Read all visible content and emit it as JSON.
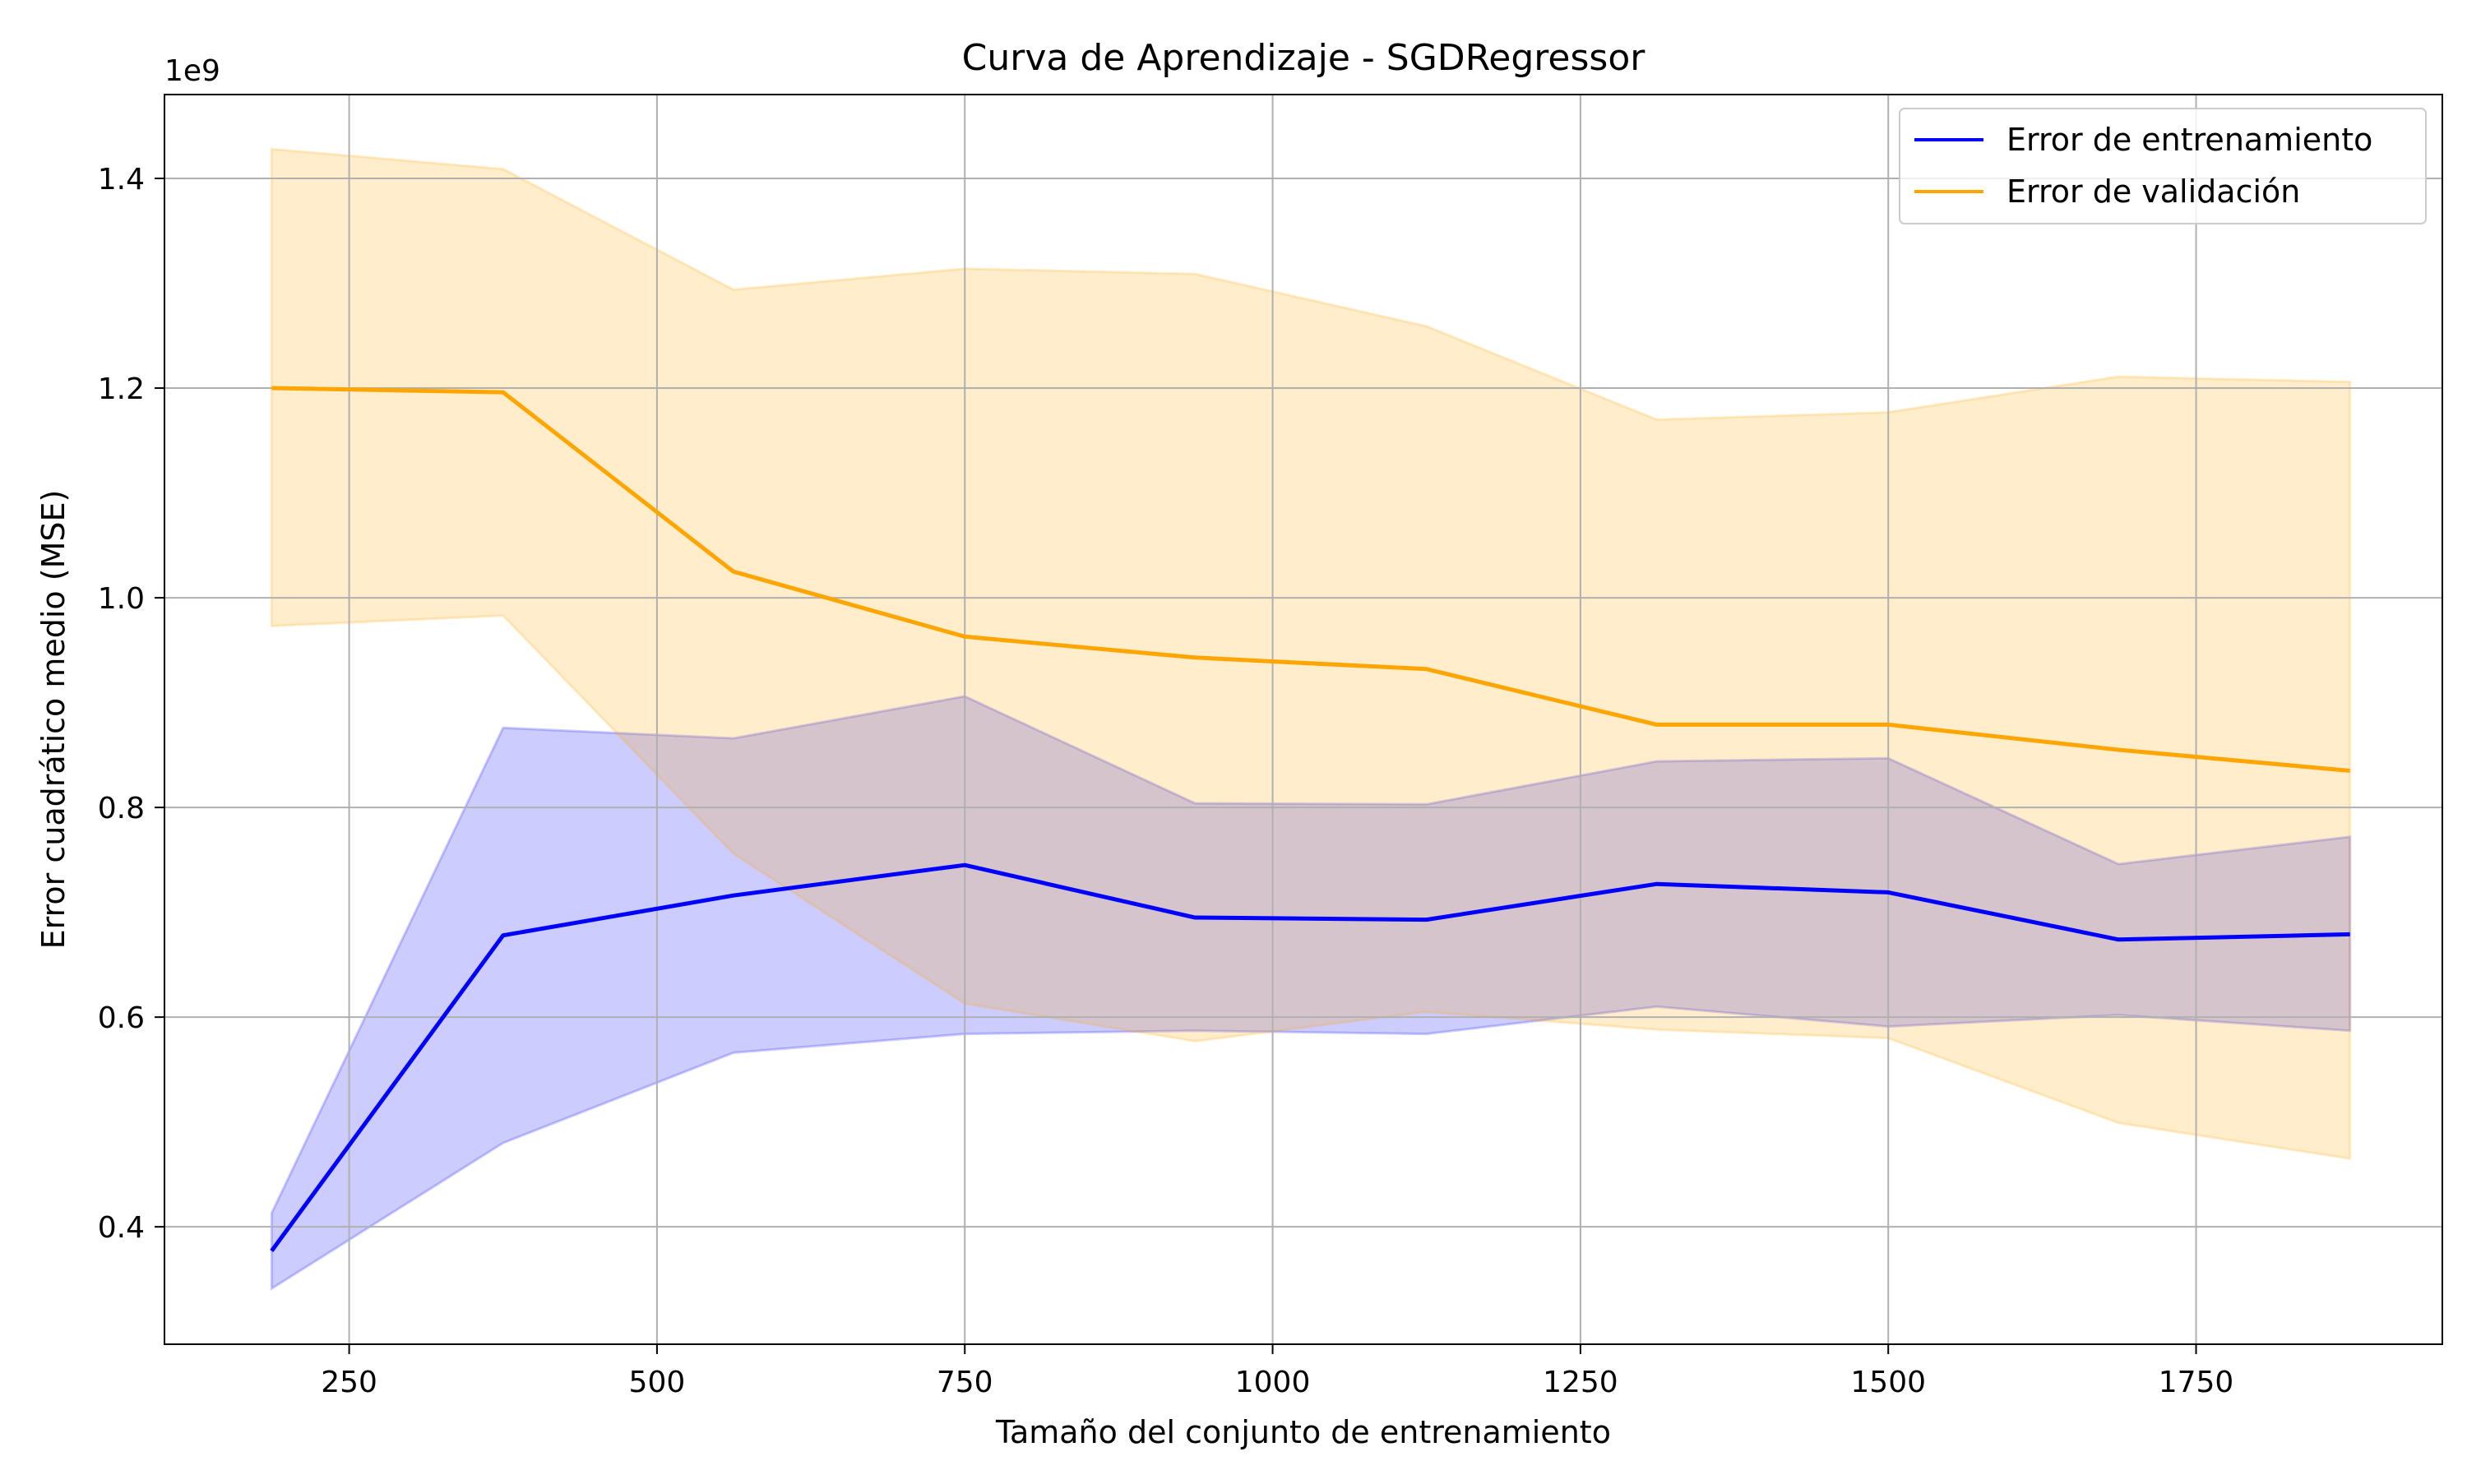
{
  "chart_data": {
    "type": "line",
    "title": "Curva de Aprendizaje - SGDRegressor",
    "xlabel": "Tamaño del conjunto de entrenamiento",
    "ylabel": "Error cuadrático medio (MSE)",
    "y_offset_label": "1e9",
    "xlim": [
      100,
      1950
    ],
    "ylim": [
      0.288,
      1.48
    ],
    "x_ticks": [
      250,
      500,
      750,
      1000,
      1250,
      1500,
      1750
    ],
    "x_tick_labels": [
      "250",
      "500",
      "750",
      "1000",
      "1250",
      "1500",
      "1750"
    ],
    "y_ticks": [
      0.4,
      0.6,
      0.8,
      1.0,
      1.2,
      1.4
    ],
    "y_tick_labels": [
      "0.4",
      "0.6",
      "0.8",
      "1.0",
      "1.2",
      "1.4"
    ],
    "grid": true,
    "legend_position": "top-right",
    "x": [
      187,
      375,
      562,
      750,
      937,
      1125,
      1312,
      1500,
      1687,
      1875
    ],
    "series": [
      {
        "name": "Error de entrenamiento",
        "color": "#0000ff",
        "band_color": "#0000ff",
        "values": [
          0.377,
          0.678,
          0.716,
          0.745,
          0.695,
          0.693,
          0.727,
          0.719,
          0.674,
          0.679
        ],
        "upper": [
          0.413,
          0.876,
          0.866,
          0.906,
          0.804,
          0.803,
          0.844,
          0.847,
          0.746,
          0.772
        ],
        "lower": [
          0.341,
          0.48,
          0.566,
          0.584,
          0.587,
          0.584,
          0.61,
          0.591,
          0.602,
          0.587
        ]
      },
      {
        "name": "Error de validación",
        "color": "#ffa500",
        "band_color": "#ffa500",
        "values": [
          1.2,
          1.196,
          1.025,
          0.963,
          0.943,
          0.932,
          0.879,
          0.879,
          0.855,
          0.835
        ],
        "upper": [
          1.428,
          1.409,
          1.294,
          1.314,
          1.309,
          1.259,
          1.17,
          1.177,
          1.211,
          1.206
        ],
        "lower": [
          0.973,
          0.983,
          0.756,
          0.613,
          0.577,
          0.605,
          0.588,
          0.58,
          0.499,
          0.465
        ]
      }
    ]
  }
}
